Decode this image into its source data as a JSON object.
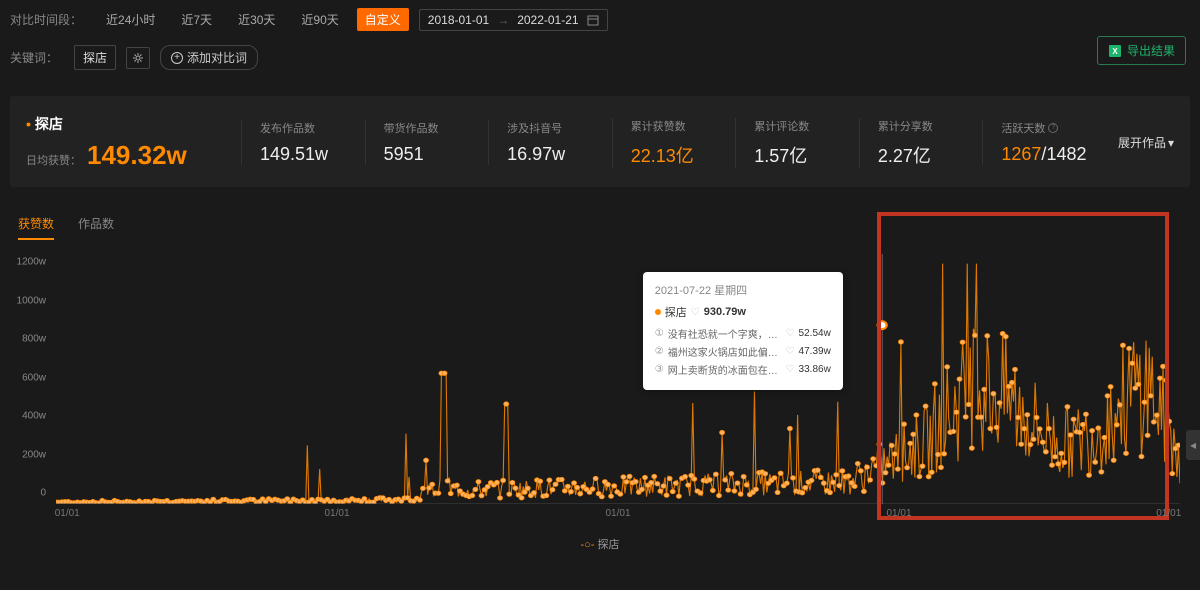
{
  "filter": {
    "label": "对比时间段：",
    "options": [
      "近24小时",
      "近7天",
      "近30天",
      "近90天",
      "自定义"
    ],
    "active_index": 4,
    "date_from": "2018-01-01",
    "date_to": "2022-01-21"
  },
  "keyword": {
    "label": "关键词：",
    "tag": "探店",
    "add_compare": "添加对比词"
  },
  "export_label": "导出结果",
  "stats": {
    "title": "探店",
    "daily_label": "日均获赞：",
    "daily_value": "149.32w",
    "metrics": [
      {
        "label": "发布作品数",
        "value": "149.51w",
        "style": "normal"
      },
      {
        "label": "带货作品数",
        "value": "5951",
        "style": "normal"
      },
      {
        "label": "涉及抖音号",
        "value": "16.97w",
        "style": "normal"
      },
      {
        "label": "累计获赞数",
        "value": "22.13亿",
        "style": "orange"
      },
      {
        "label": "累计评论数",
        "value": "1.57亿",
        "style": "normal"
      },
      {
        "label": "累计分享数",
        "value": "2.27亿",
        "style": "normal"
      }
    ],
    "active_days": {
      "label": "活跃天数",
      "info": true,
      "highlighted": "1267",
      "total": "1482"
    },
    "expand": "展开作品"
  },
  "tabs": [
    "获赞数",
    "作品数"
  ],
  "active_tab": 0,
  "chart": {
    "type": "scatter-line",
    "series_name": "探店",
    "series_color": "#ff8a00",
    "marker_fill": "#ffb366",
    "marker_stroke": "#ff8a00",
    "background_color": "#1a1a1a",
    "ylabel_unit": "w",
    "ylim": [
      0,
      1300
    ],
    "yticks": [
      0,
      200,
      400,
      600,
      800,
      1000,
      1200
    ],
    "ytick_labels": [
      "0",
      "200w",
      "400w",
      "600w",
      "800w",
      "1000w",
      "1200w"
    ],
    "xlim": [
      "2018-01-01",
      "2022-01-21"
    ],
    "xticks_labels": [
      "01/01",
      "01/01",
      "01/01",
      "01/01",
      "01/01"
    ],
    "xticks_positions_pct": [
      1,
      25,
      50,
      75,
      99
    ],
    "highlight_box": {
      "left_pct": 73,
      "right_pct": 99,
      "color": "#c23522"
    }
  },
  "tooltip": {
    "date": "2021-07-22 星期四",
    "series": "探店",
    "value": "930.79w",
    "items": [
      {
        "rank": "①",
        "text": "没有社恐就一个字爽，吃什么...",
        "val": "52.54w"
      },
      {
        "rank": "②",
        "text": "福州这家火锅店如此偏爱女生...",
        "val": "47.39w"
      },
      {
        "rank": "③",
        "text": "网上卖断货的冰面包在家门口...",
        "val": "33.86w"
      }
    ]
  },
  "legend_label": "探店"
}
